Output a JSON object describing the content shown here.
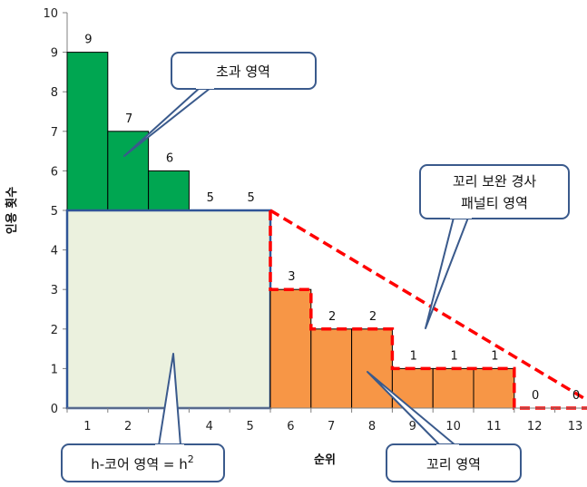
{
  "chart_data": {
    "type": "bar",
    "categories": [
      "1",
      "2",
      "3",
      "4",
      "5",
      "6",
      "7",
      "8",
      "9",
      "10",
      "11",
      "12",
      "13"
    ],
    "values": [
      9,
      7,
      6,
      5,
      5,
      3,
      2,
      2,
      1,
      1,
      1,
      0,
      0
    ],
    "value_labels": [
      "9",
      "7",
      "6",
      "5",
      "5",
      "3",
      "2",
      "2",
      "1",
      "1",
      "1",
      "0",
      "0"
    ],
    "h_index": 5,
    "xlabel": "순위",
    "ylabel": "인용 횟수",
    "ylim": [
      0,
      10
    ],
    "yticks": [
      "0",
      "1",
      "2",
      "3",
      "4",
      "5",
      "6",
      "7",
      "8",
      "9",
      "10"
    ],
    "grid": false,
    "colors": {
      "excess": "#00a651",
      "core": "#ebf1de",
      "core_border": "#2f5597",
      "tail": "#f79646",
      "penalty_line": "#ff0000",
      "callout_border": "#3a5a8c"
    },
    "annotations": {
      "excess": "초과 영역",
      "penalty_line1": "꼬리 보완 경사",
      "penalty_line2": "패널티 영역",
      "core_prefix": "h-코어 영역 = h",
      "core_sup": "2",
      "tail": "꼬리 영역"
    }
  }
}
